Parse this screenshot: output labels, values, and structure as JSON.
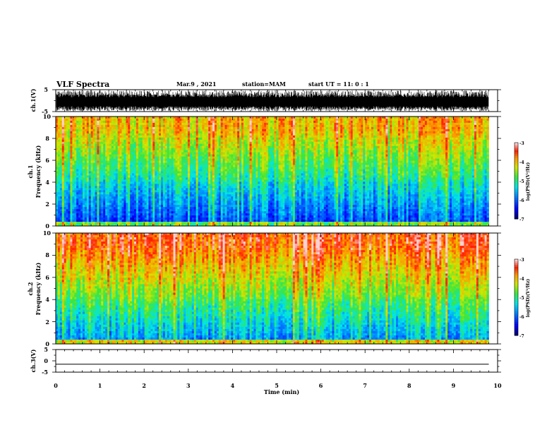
{
  "header": {
    "title": "VLF Spectra",
    "date": "Mar.9 , 2021",
    "station": "station=MAM",
    "start": "start UT = 11: 0 : 1"
  },
  "chart_data": [
    {
      "type": "line",
      "name": "ch1-waveform",
      "ylabel": "ch.1(V)",
      "ylim": [
        -5,
        5
      ],
      "yticks": [
        "5",
        "-5"
      ],
      "xlim": [
        0,
        10
      ],
      "note": "dense oscillating waveform spanning roughly -5 to 5 V"
    },
    {
      "type": "heatmap",
      "name": "ch1-spectrogram",
      "ylabel_line1": "ch.1",
      "ylabel_line2": "Frequency (kHz)",
      "ylim": [
        0,
        10
      ],
      "yticks": [
        "0",
        "2",
        "4",
        "6",
        "8",
        "10"
      ],
      "xlim": [
        0,
        9.8
      ],
      "colorbar": {
        "label": "log(PSD)(V²/Hz)",
        "range": [
          -7,
          -3
        ],
        "ticks": [
          "-3",
          "-4",
          "-5",
          "-6",
          "-7"
        ]
      }
    },
    {
      "type": "heatmap",
      "name": "ch2-spectrogram",
      "ylabel_line1": "ch.2",
      "ylabel_line2": "Frequency (kHz)",
      "ylim": [
        0,
        10
      ],
      "yticks": [
        "0",
        "2",
        "4",
        "6",
        "8",
        "10"
      ],
      "xlim": [
        0,
        9.8
      ],
      "colorbar": {
        "label": "log(PSD)(V²/Hz)",
        "range": [
          -7,
          -3
        ],
        "ticks": [
          "-3",
          "-4",
          "-5",
          "-6",
          "-7"
        ]
      }
    },
    {
      "type": "line",
      "name": "ch3-waveform",
      "ylabel": "ch.3(V)",
      "ylim": [
        -5,
        5
      ],
      "yticks": [
        "5",
        "0",
        "-5"
      ],
      "x": [
        0,
        9.8
      ],
      "y": [
        -1.5,
        -1.5
      ],
      "xlabel": "Time (min)",
      "xticks": [
        "0",
        "1",
        "2",
        "3",
        "4",
        "5",
        "6",
        "7",
        "8",
        "9",
        "10"
      ],
      "xlim": [
        0,
        10
      ]
    }
  ]
}
